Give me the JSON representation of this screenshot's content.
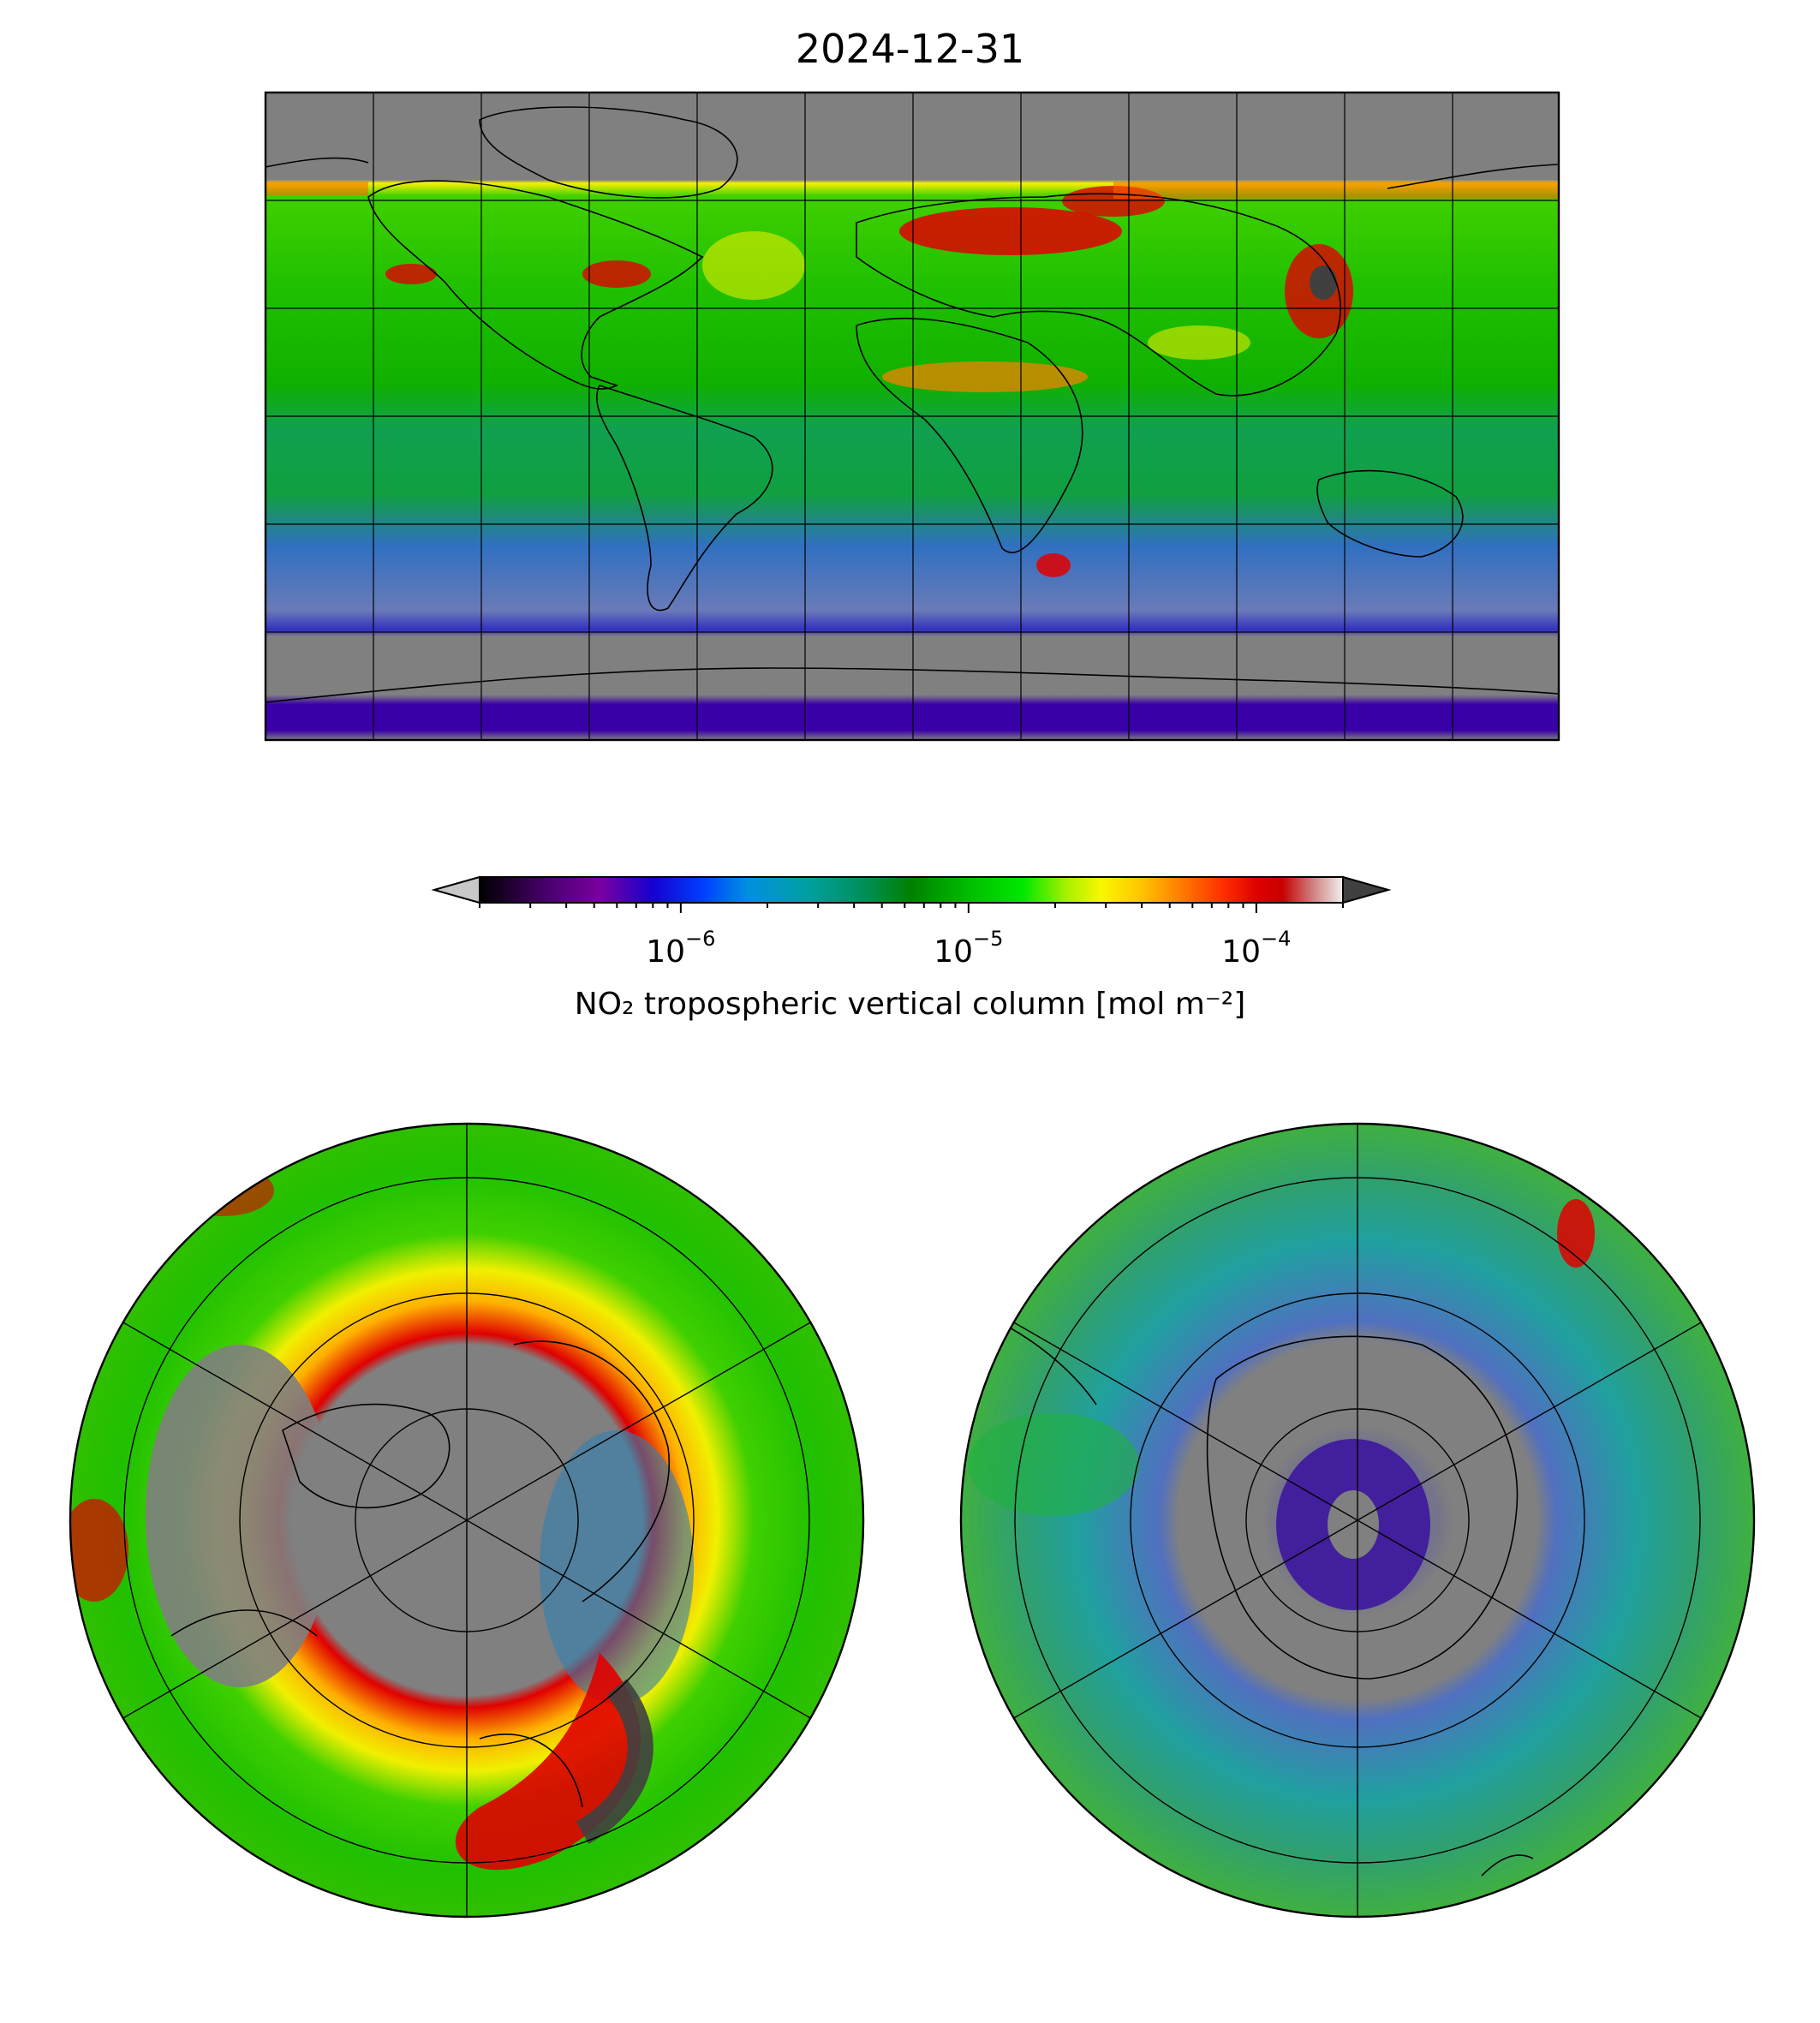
{
  "title": "2024-12-31",
  "colorbar": {
    "label": "NO₂ tropospheric vertical column [mol m⁻²]",
    "scale": "log",
    "range": [
      2e-07,
      0.0002
    ],
    "extend": "both",
    "ticks": [
      {
        "value": 1e-06,
        "base": "10",
        "exp": "−6"
      },
      {
        "value": 1e-05,
        "base": "10",
        "exp": "−5"
      },
      {
        "value": 0.0001,
        "base": "10",
        "exp": "−4"
      }
    ],
    "colors": {
      "under": "#c8c8c8",
      "over": "#404040",
      "missing": "#808080",
      "stops": [
        "#000000",
        "#4b0070",
        "#7a00a0",
        "#1500d0",
        "#0040ff",
        "#0090e0",
        "#00a0a0",
        "#009060",
        "#008000",
        "#00c000",
        "#00e800",
        "#a8f000",
        "#f8f800",
        "#ffc000",
        "#ff8000",
        "#ff3000",
        "#e00000",
        "#c80000",
        "#d08080",
        "#f0f0f0"
      ]
    }
  },
  "maps": [
    {
      "id": "global",
      "projection": "plate-carree",
      "gridlines": true
    },
    {
      "id": "north-polar",
      "projection": "north-polar-stereographic",
      "gridlines": true
    },
    {
      "id": "south-polar",
      "projection": "south-polar-stereographic",
      "gridlines": true
    }
  ]
}
